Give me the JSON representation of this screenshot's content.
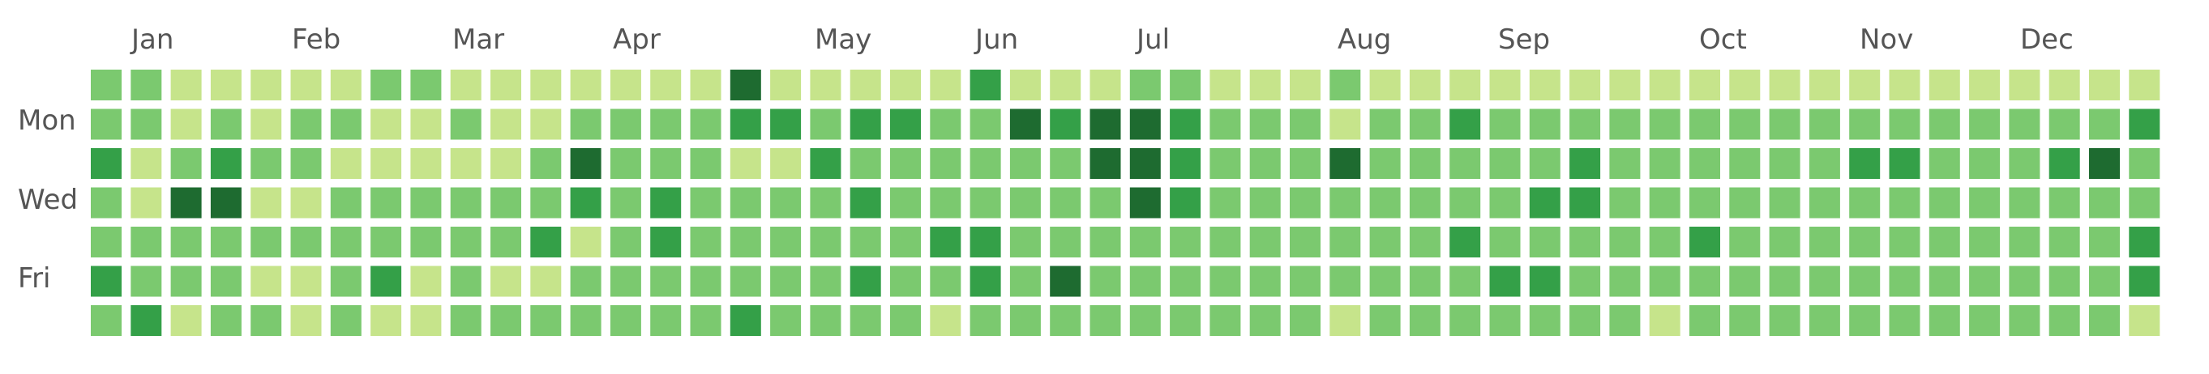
{
  "chart_data": {
    "type": "heatmap",
    "month_labels": [
      "Jan",
      "Feb",
      "Mar",
      "Apr",
      "May",
      "Jun",
      "Jul",
      "Aug",
      "Sep",
      "Oct",
      "Nov",
      "Dec"
    ],
    "day_labels": [
      "",
      "Mon",
      "",
      "Wed",
      "",
      "Fri",
      ""
    ],
    "level_colors": [
      "#c6e48b",
      "#7bc96f",
      "#34a048",
      "#1e6b30"
    ],
    "grid": [
      "1100000110000000300000200011000100000000000000000000",
      "1101011001001111221221132332111011211111111111111112",
      "2012110000013111002111111332111311111211111122111231",
      "1033001111112121111211111132111111112211111111111111",
      "1111111111120121111112211111111111211111211111111112",
      "2111001201001111111211213111111111122111111111111112",
      "1201101001111111211110111111111011111110111111111110"
    ]
  }
}
